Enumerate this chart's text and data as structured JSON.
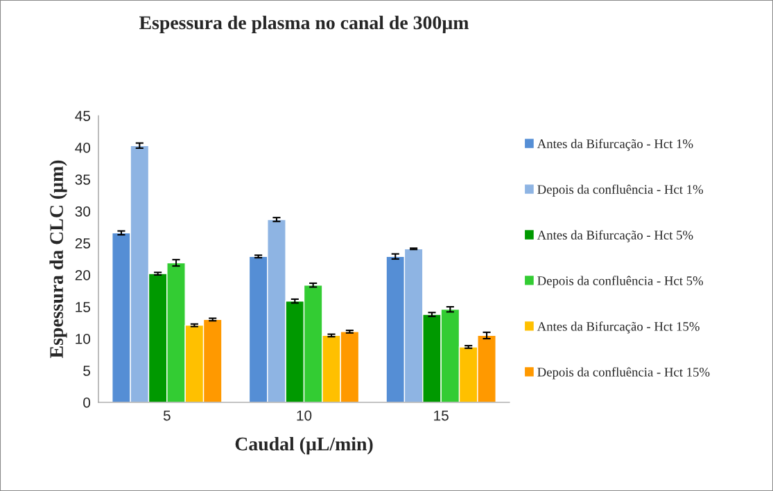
{
  "chart_data": {
    "type": "bar",
    "title": "Espessura de plasma no canal de 300µm",
    "xlabel": "Caudal (µL/min)",
    "ylabel": "Espessura da CLC (µm)",
    "categories": [
      "5",
      "10",
      "15"
    ],
    "series": [
      {
        "name": "Antes da Bifurcação - Hct 1%",
        "color": "#558ed5",
        "values": [
          26.6,
          22.9,
          22.9
        ],
        "errors": [
          0.3,
          0.2,
          0.4
        ]
      },
      {
        "name": "Depois da confluência - Hct 1%",
        "color": "#8eb4e3",
        "values": [
          40.3,
          28.7,
          24.1
        ],
        "errors": [
          0.4,
          0.3,
          0.1
        ]
      },
      {
        "name": "Antes da Bifurcação - Hct 5%",
        "color": "#009900",
        "values": [
          20.2,
          15.9,
          13.8
        ],
        "errors": [
          0.2,
          0.3,
          0.3
        ]
      },
      {
        "name": "Depois da confluência - Hct 5%",
        "color": "#33cc33",
        "values": [
          21.9,
          18.4,
          14.6
        ],
        "errors": [
          0.5,
          0.3,
          0.4
        ]
      },
      {
        "name": "Antes da Bifurcação - Hct 15%",
        "color": "#ffc000",
        "values": [
          12.1,
          10.5,
          8.7
        ],
        "errors": [
          0.2,
          0.2,
          0.2
        ]
      },
      {
        "name": "Depois da confluência - Hct 15%",
        "color": "#ff9900",
        "values": [
          13.0,
          11.1,
          10.5
        ],
        "errors": [
          0.2,
          0.2,
          0.5
        ]
      }
    ],
    "ylim": [
      0,
      45
    ],
    "yticks": [
      0,
      5,
      10,
      15,
      20,
      25,
      30,
      35,
      40,
      45
    ],
    "grid": false,
    "legend": "right"
  }
}
